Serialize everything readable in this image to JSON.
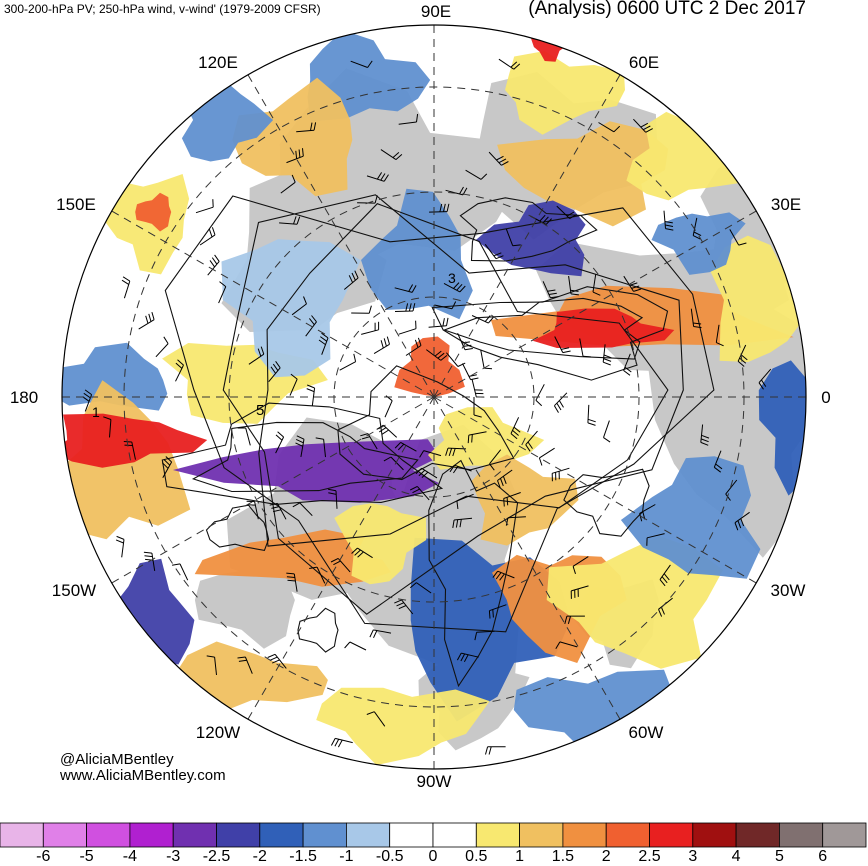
{
  "header": {
    "left_title": "300-200-hPa PV; 250-hPa wind, v-wind' (1979-2009 CFSR)",
    "right_title": "(Analysis) 0600 UTC 2 Dec 2017"
  },
  "map": {
    "projection": "north polar stereographic",
    "longitude_labels": [
      "90E",
      "60E",
      "30E",
      "0",
      "30W",
      "60W",
      "90W",
      "120W",
      "150W",
      "180",
      "150E",
      "120E"
    ],
    "contour_labels": [
      "3",
      "1",
      "5"
    ],
    "colors": {
      "land": "#c8c8c8",
      "ocean": "#ffffff",
      "contour": "#000000"
    }
  },
  "credits": {
    "line1": "@AliciaMBentley",
    "line2": "www.AliciaMBentley.com"
  },
  "colorbar": {
    "ticks": [
      "-6",
      "-5",
      "-4",
      "-3",
      "-2.5",
      "-2",
      "-1.5",
      "-1",
      "-0.5",
      "0",
      "0.5",
      "1",
      "1.5",
      "2",
      "2.5",
      "3",
      "4",
      "5",
      "6"
    ],
    "colors": [
      "#e8b4e8",
      "#e080e8",
      "#d050e0",
      "#b020d0",
      "#7030b0",
      "#4040a8",
      "#3060b8",
      "#6090d0",
      "#a8c8e8",
      "#ffffff",
      "#ffffff",
      "#f8e870",
      "#f0c060",
      "#f09040",
      "#f06030",
      "#e82020",
      "#a01010",
      "#702828",
      "#807070",
      "#a09898"
    ]
  }
}
